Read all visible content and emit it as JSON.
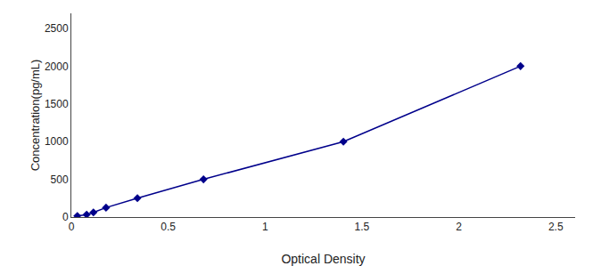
{
  "chart_data": {
    "type": "line",
    "xlabel": "Optical Density",
    "ylabel": "Concentration(pg/mL)",
    "x": [
      0.031,
      0.079,
      0.114,
      0.179,
      0.341,
      0.682,
      1.404,
      2.318
    ],
    "values": [
      15.6,
      31.25,
      62.5,
      125,
      250,
      500,
      1000,
      2000
    ],
    "color": "#00008B",
    "marker": "diamond",
    "line_style": "solid",
    "xlim": [
      0,
      2.6
    ],
    "ylim": [
      0,
      2700
    ],
    "xticks": [
      0,
      0.5,
      1,
      1.5,
      2,
      2.5
    ],
    "yticks": [
      0,
      500,
      1000,
      1500,
      2000,
      2500
    ],
    "grid": false
  }
}
